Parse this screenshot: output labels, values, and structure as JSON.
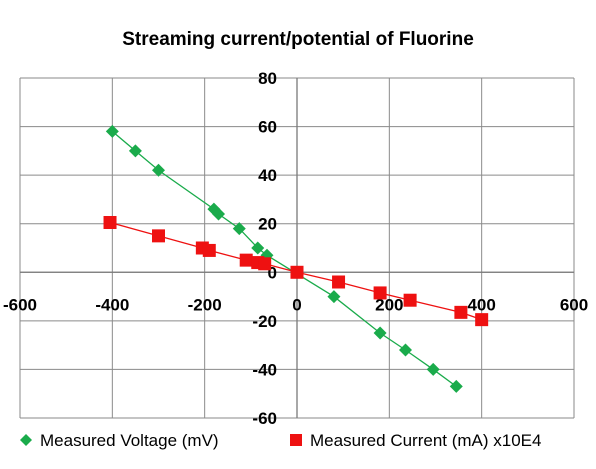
{
  "chart_data": {
    "type": "scatter",
    "title": "Streaming current/potential of Fluorine",
    "xlabel": "",
    "ylabel": "",
    "xlim": [
      -600,
      600
    ],
    "ylim": [
      -60,
      80
    ],
    "x_ticks": [
      -600,
      -400,
      -200,
      0,
      200,
      400,
      600
    ],
    "y_ticks": [
      -60,
      -40,
      -20,
      0,
      20,
      40,
      60,
      80
    ],
    "x_tick_labels": [
      "-600",
      "-400",
      "-200",
      "0",
      "200",
      "400",
      "600"
    ],
    "y_tick_labels": [
      "-60",
      "-40",
      "-20",
      "0",
      "20",
      "40",
      "60",
      "80"
    ],
    "grid": true,
    "legend_position": "bottom",
    "series": [
      {
        "name": "Measured Voltage (mV)",
        "color": "#1aab4b",
        "marker": "diamond",
        "x": [
          -400,
          -350,
          -300,
          -180,
          -170,
          -125,
          -85,
          -65,
          80,
          180,
          235,
          295,
          345
        ],
        "y": [
          58,
          50,
          42,
          26,
          24,
          18,
          10,
          7,
          -10,
          -25,
          -32,
          -40,
          -47
        ]
      },
      {
        "name": "Measured Current (mA) x10E4",
        "color": "#ee1111",
        "marker": "square",
        "x": [
          -405,
          -300,
          -205,
          -190,
          -110,
          -85,
          -70,
          0,
          90,
          180,
          245,
          355,
          400
        ],
        "y": [
          20.5,
          15,
          10,
          9,
          5,
          4,
          3.5,
          0,
          -4,
          -8.5,
          -11.5,
          -16.5,
          -19.5
        ]
      }
    ]
  }
}
